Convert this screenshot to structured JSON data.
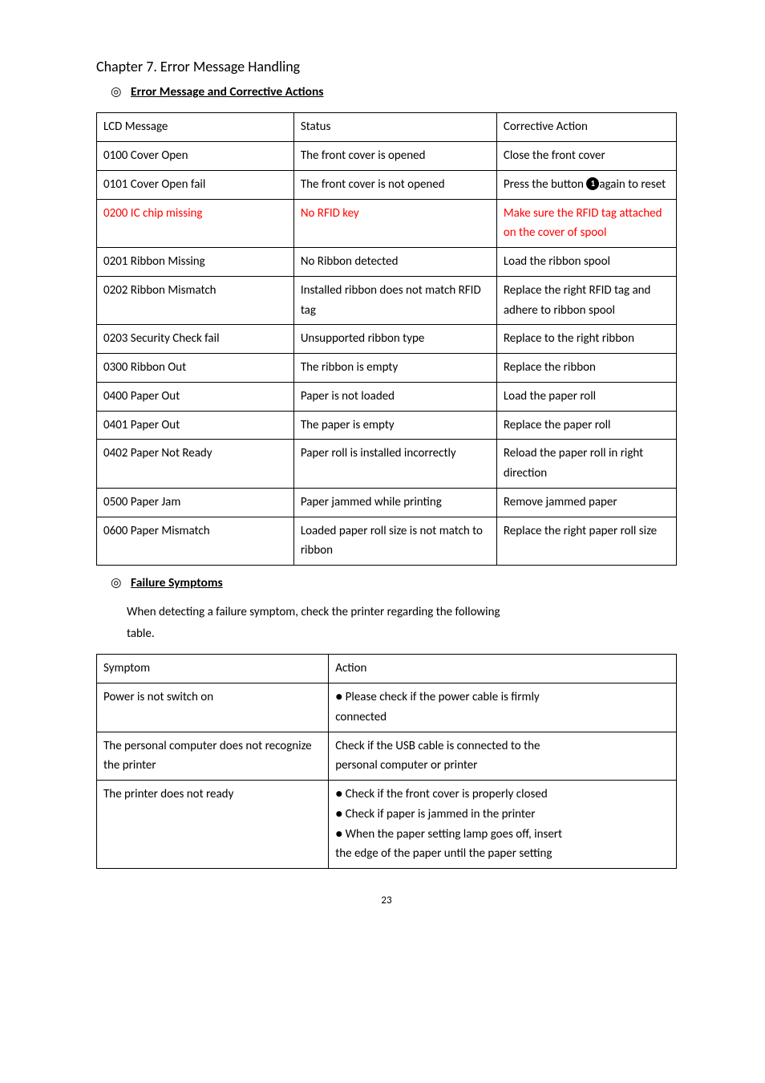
{
  "chapter_title": "Chapter 7. Error Message Handling",
  "section1": {
    "marker": "◎",
    "title": "Error Message and Corrective Actions"
  },
  "table1": {
    "headers": [
      "LCD Message",
      "Status",
      "Corrective Action"
    ],
    "rows": [
      {
        "c0": "0100 Cover Open",
        "c1": "The front cover is opened",
        "c2": "Close the front cover"
      },
      {
        "c0": "0101 Cover Open fail",
        "c1": "The front cover is not opened",
        "c2_pre": "Press the button ",
        "c2_badge": "1",
        "c2_post": "again to reset"
      },
      {
        "c0": "0200 IC chip missing",
        "c1": "No RFID key",
        "c2": "Make sure the RFID tag attached on the cover of spool",
        "red": true
      },
      {
        "c0": "0201 Ribbon Missing",
        "c1": "No Ribbon detected",
        "c2": "Load the ribbon spool"
      },
      {
        "c0": "0202 Ribbon Mismatch",
        "c1": "Installed ribbon does not match RFID tag",
        "c2": "Replace the right RFID tag and adhere to ribbon spool"
      },
      {
        "c0": "0203 Security Check fail",
        "c1": "Unsupported ribbon type",
        "c2": "Replace to the right ribbon"
      },
      {
        "c0": "0300 Ribbon Out",
        "c1": "The ribbon is empty",
        "c2": "Replace the ribbon"
      },
      {
        "c0": "0400 Paper Out",
        "c1": "Paper is not loaded",
        "c2": "Load the paper roll"
      },
      {
        "c0": "0401 Paper Out",
        "c1": "The paper is empty",
        "c2": "Replace the paper roll"
      },
      {
        "c0": "0402 Paper Not Ready",
        "c1": "Paper roll is installed incorrectly",
        "c2": "Reload the paper roll in right direction"
      },
      {
        "c0": "0500 Paper Jam",
        "c1": "Paper jammed while printing",
        "c2": "Remove jammed paper"
      },
      {
        "c0": "0600 Paper Mismatch",
        "c1": "Loaded paper roll size is not match to ribbon",
        "c2": "Replace the right paper roll size"
      }
    ]
  },
  "section2": {
    "marker": "◎",
    "title": "Failure Symptoms",
    "body1": "When detecting a failure symptom, check the printer regarding the following",
    "body2": "table."
  },
  "table2": {
    "headers": [
      "Symptom",
      "Action"
    ],
    "rows": [
      {
        "c0": "Power is not switch on",
        "c1_lines": [
          "● Please check if the power cable is firmly",
          "connected"
        ]
      },
      {
        "c0": "The personal computer does not recognize the printer",
        "c1_lines": [
          "Check if the USB cable is connected to the",
          "personal computer or printer"
        ]
      },
      {
        "c0": "The printer does not ready",
        "c1_lines": [
          "● Check if the front cover is properly closed",
          "● Check if paper is jammed in the printer",
          "● When the paper setting lamp goes off, insert",
          "the edge of the paper until the paper setting"
        ]
      }
    ]
  },
  "page_number": "23"
}
